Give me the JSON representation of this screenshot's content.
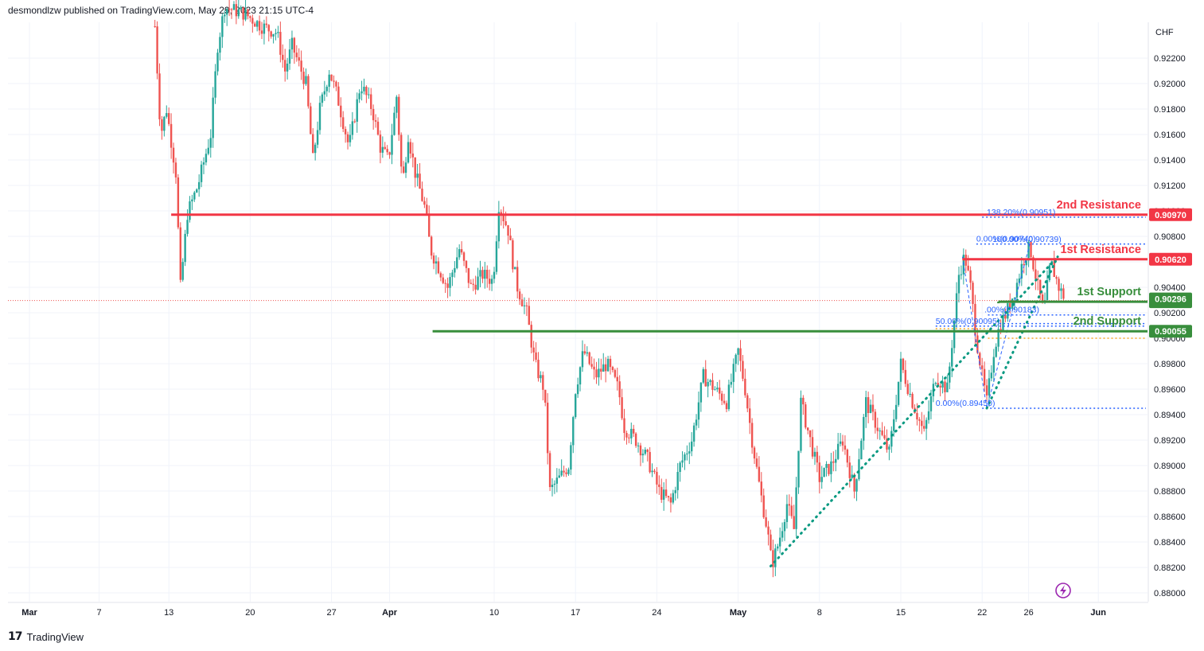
{
  "header": {
    "publisher_line": "desmondlzw published on TradingView.com, May 29, 2023 21:15 UTC-4"
  },
  "footer": {
    "brand": "TradingView",
    "logo_icon": "tradingview-logo-icon"
  },
  "colors": {
    "up": "#26a69a",
    "down": "#ef5350",
    "resistance": "#f23645",
    "support": "#388e3c",
    "fib": "#2962ff",
    "trendline": "#089981",
    "fib_gold": "#f9a825",
    "replay_icon": "#9c27b0"
  },
  "chart_data": {
    "type": "candlestick",
    "currency": "CHF",
    "y_range": [
      0.879,
      0.9245
    ],
    "y_ticks": [
      "0.92200",
      "0.92000",
      "0.91800",
      "0.91600",
      "0.91400",
      "0.91200",
      "0.91000",
      "0.90800",
      "0.90600",
      "0.90400",
      "0.90200",
      "0.90000",
      "0.89800",
      "0.89600",
      "0.89400",
      "0.89200",
      "0.89000",
      "0.88800",
      "0.88600",
      "0.88400",
      "0.88200",
      "0.88000"
    ],
    "x_ticks": [
      {
        "label": "Mar",
        "day": 0
      },
      {
        "label": "7",
        "day": 6
      },
      {
        "label": "13",
        "day": 12
      },
      {
        "label": "20",
        "day": 19
      },
      {
        "label": "27",
        "day": 26
      },
      {
        "label": "Apr",
        "day": 31
      },
      {
        "label": "10",
        "day": 40
      },
      {
        "label": "17",
        "day": 47
      },
      {
        "label": "24",
        "day": 54
      },
      {
        "label": "May",
        "day": 61
      },
      {
        "label": "8",
        "day": 68
      },
      {
        "label": "15",
        "day": 75
      },
      {
        "label": "22",
        "day": 82
      },
      {
        "label": "26",
        "day": 86
      },
      {
        "label": "Jun",
        "day": 92
      }
    ],
    "anchors": [
      [
        10.8,
        0.9245
      ],
      [
        11.3,
        0.916
      ],
      [
        11.8,
        0.918
      ],
      [
        12.6,
        0.913
      ],
      [
        13.0,
        0.904
      ],
      [
        13.6,
        0.9098
      ],
      [
        14.5,
        0.912
      ],
      [
        15.6,
        0.916
      ],
      [
        16.2,
        0.923
      ],
      [
        16.8,
        0.926
      ],
      [
        18.5,
        0.9255
      ],
      [
        20.0,
        0.9245
      ],
      [
        21.3,
        0.924
      ],
      [
        22.0,
        0.921
      ],
      [
        22.6,
        0.923
      ],
      [
        23.8,
        0.92
      ],
      [
        24.4,
        0.914
      ],
      [
        25.0,
        0.918
      ],
      [
        25.8,
        0.921
      ],
      [
        26.5,
        0.919
      ],
      [
        27.5,
        0.915
      ],
      [
        28.5,
        0.92
      ],
      [
        29.5,
        0.918
      ],
      [
        30.2,
        0.915
      ],
      [
        30.9,
        0.914
      ],
      [
        31.6,
        0.919
      ],
      [
        32.1,
        0.912
      ],
      [
        32.6,
        0.916
      ],
      [
        33.2,
        0.913
      ],
      [
        34.1,
        0.91
      ],
      [
        34.5,
        0.907
      ],
      [
        35.0,
        0.906
      ],
      [
        36.0,
        0.904
      ],
      [
        37.0,
        0.907
      ],
      [
        38.0,
        0.904
      ],
      [
        39.0,
        0.905
      ],
      [
        39.9,
        0.9045
      ],
      [
        40.4,
        0.9105
      ],
      [
        41.2,
        0.9085
      ],
      [
        41.6,
        0.906
      ],
      [
        42.0,
        0.904
      ],
      [
        42.8,
        0.902
      ],
      [
        43.5,
        0.898
      ],
      [
        44.3,
        0.896
      ],
      [
        44.8,
        0.888
      ],
      [
        45.6,
        0.889
      ],
      [
        46.4,
        0.89
      ],
      [
        47.0,
        0.896
      ],
      [
        47.7,
        0.899
      ],
      [
        48.7,
        0.897
      ],
      [
        49.7,
        0.898
      ],
      [
        50.7,
        0.896
      ],
      [
        51.2,
        0.893
      ],
      [
        52.2,
        0.892
      ],
      [
        53.2,
        0.8905
      ],
      [
        54.2,
        0.888
      ],
      [
        55.2,
        0.887
      ],
      [
        56.0,
        0.89
      ],
      [
        57.0,
        0.892
      ],
      [
        58.0,
        0.897
      ],
      [
        59.0,
        0.896
      ],
      [
        60.0,
        0.895
      ],
      [
        61.0,
        0.899
      ],
      [
        61.6,
        0.896
      ],
      [
        62.2,
        0.892
      ],
      [
        62.9,
        0.888
      ],
      [
        63.5,
        0.885
      ],
      [
        63.9,
        0.8822
      ],
      [
        64.5,
        0.884
      ],
      [
        65.2,
        0.887
      ],
      [
        65.8,
        0.885
      ],
      [
        66.4,
        0.895
      ],
      [
        67.2,
        0.892
      ],
      [
        68.0,
        0.889
      ],
      [
        69.0,
        0.89
      ],
      [
        70.0,
        0.892
      ],
      [
        71.0,
        0.888
      ],
      [
        72.0,
        0.895
      ],
      [
        73.0,
        0.893
      ],
      [
        74.0,
        0.891
      ],
      [
        75.0,
        0.898
      ],
      [
        76.0,
        0.895
      ],
      [
        77.0,
        0.8925
      ],
      [
        78.0,
        0.897
      ],
      [
        79.0,
        0.896
      ],
      [
        80.0,
        0.905
      ],
      [
        80.5,
        0.9065
      ],
      [
        81.0,
        0.904
      ],
      [
        81.5,
        0.9
      ],
      [
        82.0,
        0.897
      ],
      [
        82.4,
        0.895
      ],
      [
        83.0,
        0.899
      ],
      [
        83.5,
        0.901
      ],
      [
        84.1,
        0.902
      ],
      [
        84.9,
        0.904
      ],
      [
        85.5,
        0.906
      ],
      [
        86.1,
        0.9072
      ],
      [
        86.8,
        0.904
      ],
      [
        87.3,
        0.902
      ],
      [
        87.9,
        0.906
      ],
      [
        88.6,
        0.904
      ],
      [
        89.2,
        0.903
      ]
    ],
    "levels": [
      {
        "name": "2nd Resistance",
        "value": "0.90970",
        "price": 0.9097,
        "kind": "resistance",
        "start_day": 12.2
      },
      {
        "name": "1st Resistance",
        "value": "0.90620",
        "price": 0.9062,
        "kind": "resistance",
        "start_day": 80.3
      },
      {
        "name": "1st Support",
        "value": "0.90287",
        "price": 0.90287,
        "kind": "support",
        "start_day": 83.4
      },
      {
        "name": "2nd Support",
        "value": "0.90055",
        "price": 0.90055,
        "kind": "support",
        "start_day": 34.7
      }
    ],
    "current_price": {
      "value": "0.90296",
      "price": 0.90296
    },
    "fib_labels": [
      {
        "text": "138.20%(0.90951)",
        "price": 0.90951,
        "day": 82.4
      },
      {
        "text": "0.00%(0.90740)",
        "price": 0.9074,
        "day": 81.5
      },
      {
        "text": "100.00%(0.90739)",
        "price": 0.90739,
        "day": 82.9
      },
      {
        "text": ".00%(0.90183)",
        "price": 0.90183,
        "day": 82.2
      },
      {
        "text": "50.00%(0.90095)",
        "price": 0.90095,
        "day": 78.0
      },
      {
        "text": "0.00%(0.89450)",
        "price": 0.8945,
        "day": 78.0
      }
    ],
    "trendlines": [
      {
        "from": [
          63.8,
          0.8821
        ],
        "to": [
          88.5,
          0.9064
        ]
      }
    ]
  }
}
